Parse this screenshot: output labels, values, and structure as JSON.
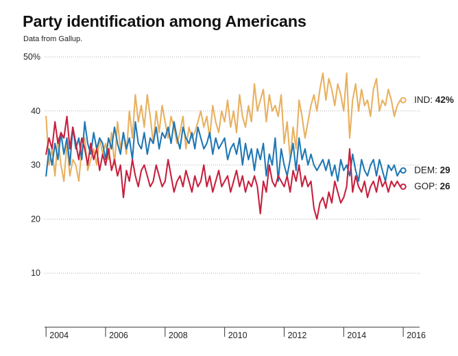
{
  "title": "Party identification among Americans",
  "subtitle": "Data from Gallup.",
  "chart_data": {
    "type": "line",
    "title": "Party identification among Americans",
    "subtitle": "Data from Gallup.",
    "xlabel": "",
    "ylabel": "",
    "xlim": [
      2003.95,
      2016.55
    ],
    "ylim": [
      0,
      50
    ],
    "x_ticks": [
      2004,
      2006,
      2008,
      2010,
      2012,
      2014,
      2016
    ],
    "x_tick_labels": [
      "2004",
      "2006",
      "2008",
      "2010",
      "2012",
      "2014",
      "2016"
    ],
    "y_ticks": [
      10,
      20,
      30,
      40,
      50
    ],
    "y_tick_labels": [
      "10",
      "20",
      "30",
      "40",
      "50%"
    ],
    "grid": "horizontal dotted",
    "legend": "direct labels at line ends",
    "series": [
      {
        "name": "IND",
        "end_label_prefix": "IND: ",
        "end_label_value": "42%",
        "color": "#e8b060",
        "x": [
          2004.0,
          2004.1,
          2004.2,
          2004.3,
          2004.4,
          2004.5,
          2004.6,
          2004.7,
          2004.8,
          2004.9,
          2005.0,
          2005.1,
          2005.2,
          2005.3,
          2005.4,
          2005.5,
          2005.6,
          2005.7,
          2005.8,
          2005.9,
          2006.0,
          2006.1,
          2006.2,
          2006.3,
          2006.4,
          2006.5,
          2006.6,
          2006.7,
          2006.8,
          2006.9,
          2007.0,
          2007.1,
          2007.2,
          2007.3,
          2007.4,
          2007.5,
          2007.6,
          2007.7,
          2007.8,
          2007.9,
          2008.0,
          2008.1,
          2008.2,
          2008.3,
          2008.4,
          2008.5,
          2008.6,
          2008.7,
          2008.8,
          2008.9,
          2009.0,
          2009.1,
          2009.2,
          2009.3,
          2009.4,
          2009.5,
          2009.6,
          2009.7,
          2009.8,
          2009.9,
          2010.0,
          2010.1,
          2010.2,
          2010.3,
          2010.4,
          2010.5,
          2010.6,
          2010.7,
          2010.8,
          2010.9,
          2011.0,
          2011.1,
          2011.2,
          2011.3,
          2011.4,
          2011.5,
          2011.6,
          2011.7,
          2011.8,
          2011.9,
          2012.0,
          2012.1,
          2012.2,
          2012.3,
          2012.4,
          2012.5,
          2012.6,
          2012.7,
          2012.8,
          2012.9,
          2013.0,
          2013.1,
          2013.2,
          2013.3,
          2013.4,
          2013.5,
          2013.6,
          2013.7,
          2013.8,
          2013.9,
          2014.0,
          2014.1,
          2014.2,
          2014.3,
          2014.4,
          2014.5,
          2014.6,
          2014.7,
          2014.8,
          2014.9,
          2015.0,
          2015.1,
          2015.2,
          2015.3,
          2015.4,
          2015.5,
          2015.6,
          2015.7,
          2015.8,
          2015.9
        ],
        "values": [
          39,
          30,
          33,
          28,
          35,
          30,
          27,
          34,
          28,
          31,
          30,
          27,
          33,
          35,
          29,
          31,
          33,
          30,
          35,
          32,
          34,
          31,
          36,
          30,
          38,
          33,
          36,
          32,
          40,
          35,
          43,
          38,
          41,
          37,
          43,
          39,
          34,
          40,
          36,
          41,
          38,
          35,
          39,
          37,
          34,
          36,
          39,
          33,
          37,
          35,
          36,
          38,
          40,
          37,
          39,
          35,
          41,
          38,
          36,
          40,
          38,
          42,
          37,
          40,
          36,
          43,
          39,
          37,
          41,
          38,
          45,
          40,
          42,
          44,
          38,
          43,
          40,
          41,
          39,
          43,
          34,
          38,
          31,
          37,
          33,
          42,
          39,
          35,
          38,
          41,
          43,
          40,
          44,
          47,
          42,
          46,
          44,
          41,
          45,
          43,
          40,
          47,
          35,
          42,
          45,
          40,
          44,
          41,
          42,
          39,
          44,
          46,
          40,
          42,
          41,
          44,
          42,
          39,
          41,
          42
        ]
      },
      {
        "name": "DEM",
        "end_label_prefix": "DEM: ",
        "end_label_value": "29",
        "color": "#1f77b4",
        "x": [
          2004.0,
          2004.1,
          2004.2,
          2004.3,
          2004.4,
          2004.5,
          2004.6,
          2004.7,
          2004.8,
          2004.9,
          2005.0,
          2005.1,
          2005.2,
          2005.3,
          2005.4,
          2005.5,
          2005.6,
          2005.7,
          2005.8,
          2005.9,
          2006.0,
          2006.1,
          2006.2,
          2006.3,
          2006.4,
          2006.5,
          2006.6,
          2006.7,
          2006.8,
          2006.9,
          2007.0,
          2007.1,
          2007.2,
          2007.3,
          2007.4,
          2007.5,
          2007.6,
          2007.7,
          2007.8,
          2007.9,
          2008.0,
          2008.1,
          2008.2,
          2008.3,
          2008.4,
          2008.5,
          2008.6,
          2008.7,
          2008.8,
          2008.9,
          2009.0,
          2009.1,
          2009.2,
          2009.3,
          2009.4,
          2009.5,
          2009.6,
          2009.7,
          2009.8,
          2009.9,
          2010.0,
          2010.1,
          2010.2,
          2010.3,
          2010.4,
          2010.5,
          2010.6,
          2010.7,
          2010.8,
          2010.9,
          2011.0,
          2011.1,
          2011.2,
          2011.3,
          2011.4,
          2011.5,
          2011.6,
          2011.7,
          2011.8,
          2011.9,
          2012.0,
          2012.1,
          2012.2,
          2012.3,
          2012.4,
          2012.5,
          2012.6,
          2012.7,
          2012.8,
          2012.9,
          2013.0,
          2013.1,
          2013.2,
          2013.3,
          2013.4,
          2013.5,
          2013.6,
          2013.7,
          2013.8,
          2013.9,
          2014.0,
          2014.1,
          2014.2,
          2014.3,
          2014.4,
          2014.5,
          2014.6,
          2014.7,
          2014.8,
          2014.9,
          2015.0,
          2015.1,
          2015.2,
          2015.3,
          2015.4,
          2015.5,
          2015.6,
          2015.7,
          2015.8,
          2015.9
        ],
        "values": [
          28,
          33,
          30,
          34,
          31,
          36,
          32,
          35,
          30,
          37,
          33,
          35,
          31,
          38,
          34,
          32,
          36,
          33,
          35,
          34,
          31,
          35,
          33,
          37,
          34,
          32,
          36,
          33,
          35,
          31,
          38,
          34,
          33,
          36,
          32,
          35,
          34,
          37,
          33,
          36,
          35,
          37,
          34,
          38,
          35,
          33,
          37,
          35,
          34,
          36,
          33,
          37,
          35,
          33,
          34,
          36,
          32,
          35,
          33,
          34,
          35,
          31,
          33,
          34,
          32,
          35,
          30,
          34,
          31,
          33,
          29,
          33,
          31,
          34,
          28,
          32,
          30,
          35,
          27,
          33,
          30,
          28,
          31,
          34,
          29,
          35,
          31,
          33,
          30,
          32,
          30,
          29,
          30,
          31,
          29,
          31,
          28,
          30,
          27,
          31,
          29,
          30,
          28,
          32,
          29,
          27,
          31,
          29,
          28,
          30,
          31,
          28,
          31,
          29,
          27,
          30,
          29,
          30,
          28,
          29
        ]
      },
      {
        "name": "GOP",
        "end_label_prefix": "GOP: ",
        "end_label_value": "26",
        "color": "#c6203e",
        "x": [
          2004.0,
          2004.1,
          2004.2,
          2004.3,
          2004.4,
          2004.5,
          2004.6,
          2004.7,
          2004.8,
          2004.9,
          2005.0,
          2005.1,
          2005.2,
          2005.3,
          2005.4,
          2005.5,
          2005.6,
          2005.7,
          2005.8,
          2005.9,
          2006.0,
          2006.1,
          2006.2,
          2006.3,
          2006.4,
          2006.5,
          2006.6,
          2006.7,
          2006.8,
          2006.9,
          2007.0,
          2007.1,
          2007.2,
          2007.3,
          2007.4,
          2007.5,
          2007.6,
          2007.7,
          2007.8,
          2007.9,
          2008.0,
          2008.1,
          2008.2,
          2008.3,
          2008.4,
          2008.5,
          2008.6,
          2008.7,
          2008.8,
          2008.9,
          2009.0,
          2009.1,
          2009.2,
          2009.3,
          2009.4,
          2009.5,
          2009.6,
          2009.7,
          2009.8,
          2009.9,
          2010.0,
          2010.1,
          2010.2,
          2010.3,
          2010.4,
          2010.5,
          2010.6,
          2010.7,
          2010.8,
          2010.9,
          2011.0,
          2011.1,
          2011.2,
          2011.3,
          2011.4,
          2011.5,
          2011.6,
          2011.7,
          2011.8,
          2011.9,
          2012.0,
          2012.1,
          2012.2,
          2012.3,
          2012.4,
          2012.5,
          2012.6,
          2012.7,
          2012.8,
          2012.9,
          2013.0,
          2013.1,
          2013.2,
          2013.3,
          2013.4,
          2013.5,
          2013.6,
          2013.7,
          2013.8,
          2013.9,
          2014.0,
          2014.1,
          2014.2,
          2014.3,
          2014.4,
          2014.5,
          2014.6,
          2014.7,
          2014.8,
          2014.9,
          2015.0,
          2015.1,
          2015.2,
          2015.3,
          2015.4,
          2015.5,
          2015.6,
          2015.7,
          2015.8,
          2015.9
        ],
        "values": [
          32,
          35,
          33,
          38,
          34,
          36,
          35,
          39,
          33,
          37,
          34,
          31,
          35,
          33,
          30,
          34,
          31,
          33,
          29,
          32,
          30,
          33,
          29,
          31,
          28,
          30,
          24,
          29,
          27,
          31,
          28,
          26,
          29,
          30,
          28,
          26,
          27,
          30,
          28,
          26,
          27,
          31,
          28,
          25,
          27,
          28,
          26,
          29,
          27,
          25,
          28,
          26,
          27,
          30,
          26,
          28,
          25,
          27,
          29,
          26,
          27,
          28,
          25,
          27,
          29,
          26,
          28,
          25,
          27,
          26,
          28,
          26,
          21,
          27,
          25,
          30,
          27,
          26,
          28,
          27,
          26,
          28,
          25,
          29,
          27,
          30,
          26,
          28,
          26,
          27,
          22,
          20,
          23,
          24,
          22,
          25,
          23,
          27,
          25,
          23,
          24,
          26,
          33,
          25,
          28,
          26,
          25,
          27,
          24,
          26,
          27,
          25,
          28,
          26,
          27,
          25,
          27,
          26,
          27,
          26
        ]
      }
    ]
  }
}
